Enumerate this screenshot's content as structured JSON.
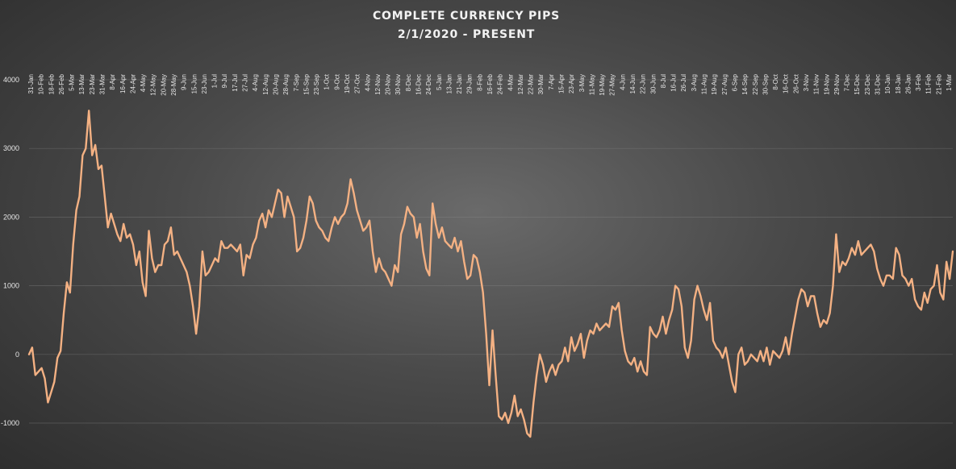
{
  "chart_data": {
    "type": "line",
    "title": "COMPLETE CURRENCY PIPS",
    "subtitle": "2/1/2020 - PRESENT",
    "xlabel": "",
    "ylabel": "",
    "ylim": [
      -1000,
      4000
    ],
    "yticks": [
      -1000,
      0,
      1000,
      2000,
      3000,
      4000
    ],
    "grid": true,
    "legend": "none",
    "line_color": "#f4b183",
    "xtick_labels": [
      "31-Jan",
      "10-Feb",
      "18-Feb",
      "26-Feb",
      "5-Mar",
      "13-Mar",
      "23-Mar",
      "31-Mar",
      "8-Apr",
      "16-Apr",
      "24-Apr",
      "4-May",
      "12-May",
      "20-May",
      "28-May",
      "9-Jun",
      "15-Jun",
      "23-Jun",
      "1-Jul",
      "9-Jul",
      "17-Jul",
      "27-Jul",
      "4-Aug",
      "12-Aug",
      "20-Aug",
      "28-Aug",
      "7-Sep",
      "15-Sep",
      "23-Sep",
      "1-Oct",
      "9-Oct",
      "19-Oct",
      "27-Oct",
      "4-Nov",
      "12-Nov",
      "20-Nov",
      "30-Nov",
      "8-Dec",
      "16-Dec",
      "24-Dec",
      "5-Jan",
      "13-Jan",
      "21-Jan",
      "29-Jan",
      "8-Feb",
      "16-Feb",
      "24-Feb",
      "4-Mar",
      "12-Mar",
      "22-Mar",
      "30-Mar",
      "7-Apr",
      "15-Apr",
      "23-Apr",
      "3-May",
      "11-May",
      "19-May",
      "27-May",
      "4-Jun",
      "14-Jun",
      "22-Jun",
      "30-Jun",
      "8-Jul",
      "16-Jul",
      "26-Jul",
      "3-Aug",
      "11-Aug",
      "19-Aug",
      "27-Aug",
      "6-Sep",
      "14-Sep",
      "22-Sep",
      "30-Sep",
      "8-Oct",
      "16-Oct",
      "26-Oct",
      "3-Nov",
      "11-Nov",
      "19-Nov",
      "29-Nov",
      "7-Dec",
      "15-Dec",
      "23-Dec",
      "31-Dec",
      "10-Jan",
      "18-Jan",
      "26-Jan",
      "3-Feb",
      "11-Feb",
      "21-Feb",
      "1-Mar"
    ],
    "series": [
      {
        "values": [
          [
            0,
            0
          ],
          [
            1,
            100
          ],
          [
            2,
            -300
          ],
          [
            3,
            -250
          ],
          [
            4,
            -200
          ],
          [
            5,
            -350
          ],
          [
            6,
            -700
          ],
          [
            7,
            -550
          ],
          [
            8,
            -400
          ],
          [
            9,
            -50
          ],
          [
            10,
            50
          ],
          [
            11,
            600
          ],
          [
            12,
            1050
          ],
          [
            13,
            900
          ],
          [
            14,
            1600
          ],
          [
            15,
            2100
          ],
          [
            16,
            2300
          ],
          [
            17,
            2900
          ],
          [
            18,
            3000
          ],
          [
            19,
            3550
          ],
          [
            20,
            2900
          ],
          [
            21,
            3050
          ],
          [
            22,
            2700
          ],
          [
            23,
            2750
          ],
          [
            24,
            2300
          ],
          [
            25,
            1850
          ],
          [
            26,
            2050
          ],
          [
            27,
            1900
          ],
          [
            28,
            1750
          ],
          [
            29,
            1650
          ],
          [
            30,
            1900
          ],
          [
            31,
            1700
          ],
          [
            32,
            1750
          ],
          [
            33,
            1600
          ],
          [
            34,
            1300
          ],
          [
            35,
            1500
          ],
          [
            36,
            1050
          ],
          [
            37,
            850
          ],
          [
            38,
            1800
          ],
          [
            39,
            1400
          ],
          [
            40,
            1200
          ],
          [
            41,
            1300
          ],
          [
            42,
            1300
          ],
          [
            43,
            1600
          ],
          [
            44,
            1650
          ],
          [
            45,
            1850
          ],
          [
            46,
            1450
          ],
          [
            47,
            1500
          ],
          [
            48,
            1400
          ],
          [
            49,
            1300
          ],
          [
            50,
            1200
          ],
          [
            51,
            1000
          ],
          [
            52,
            700
          ],
          [
            53,
            300
          ],
          [
            54,
            700
          ],
          [
            55,
            1500
          ],
          [
            56,
            1150
          ],
          [
            57,
            1200
          ],
          [
            58,
            1300
          ],
          [
            59,
            1400
          ],
          [
            60,
            1350
          ],
          [
            61,
            1650
          ],
          [
            62,
            1550
          ],
          [
            63,
            1550
          ],
          [
            64,
            1600
          ],
          [
            65,
            1550
          ],
          [
            66,
            1500
          ],
          [
            67,
            1600
          ],
          [
            68,
            1150
          ],
          [
            69,
            1450
          ],
          [
            70,
            1400
          ],
          [
            71,
            1600
          ],
          [
            72,
            1700
          ],
          [
            73,
            1950
          ],
          [
            74,
            2050
          ],
          [
            75,
            1850
          ],
          [
            76,
            2100
          ],
          [
            77,
            2000
          ],
          [
            78,
            2200
          ],
          [
            79,
            2400
          ],
          [
            80,
            2350
          ],
          [
            81,
            2000
          ],
          [
            82,
            2300
          ],
          [
            83,
            2150
          ],
          [
            84,
            2000
          ],
          [
            85,
            1500
          ],
          [
            86,
            1550
          ],
          [
            87,
            1700
          ],
          [
            88,
            1950
          ],
          [
            89,
            2300
          ],
          [
            90,
            2200
          ],
          [
            91,
            1950
          ],
          [
            92,
            1850
          ],
          [
            93,
            1800
          ],
          [
            94,
            1700
          ],
          [
            95,
            1650
          ],
          [
            96,
            1850
          ],
          [
            97,
            2000
          ],
          [
            98,
            1900
          ],
          [
            99,
            2000
          ],
          [
            100,
            2050
          ],
          [
            101,
            2200
          ],
          [
            102,
            2550
          ],
          [
            103,
            2350
          ],
          [
            104,
            2100
          ],
          [
            105,
            1950
          ],
          [
            106,
            1800
          ],
          [
            107,
            1850
          ],
          [
            108,
            1950
          ],
          [
            109,
            1500
          ],
          [
            110,
            1200
          ],
          [
            111,
            1400
          ],
          [
            112,
            1250
          ],
          [
            113,
            1200
          ],
          [
            114,
            1100
          ],
          [
            115,
            1000
          ],
          [
            116,
            1300
          ],
          [
            117,
            1200
          ],
          [
            118,
            1750
          ],
          [
            119,
            1900
          ],
          [
            120,
            2150
          ],
          [
            121,
            2050
          ],
          [
            122,
            2000
          ],
          [
            123,
            1700
          ],
          [
            124,
            1900
          ],
          [
            125,
            1500
          ],
          [
            126,
            1250
          ],
          [
            127,
            1150
          ],
          [
            128,
            2200
          ],
          [
            129,
            1900
          ],
          [
            130,
            1700
          ],
          [
            131,
            1850
          ],
          [
            132,
            1650
          ],
          [
            133,
            1600
          ],
          [
            134,
            1550
          ],
          [
            135,
            1700
          ],
          [
            136,
            1500
          ],
          [
            137,
            1650
          ],
          [
            138,
            1350
          ],
          [
            139,
            1100
          ],
          [
            140,
            1150
          ],
          [
            141,
            1450
          ],
          [
            142,
            1400
          ],
          [
            143,
            1200
          ],
          [
            144,
            900
          ],
          [
            145,
            300
          ],
          [
            146,
            -450
          ],
          [
            147,
            350
          ],
          [
            148,
            -300
          ],
          [
            149,
            -900
          ],
          [
            150,
            -950
          ],
          [
            151,
            -850
          ],
          [
            152,
            -1000
          ],
          [
            153,
            -850
          ],
          [
            154,
            -600
          ],
          [
            155,
            -900
          ],
          [
            156,
            -800
          ],
          [
            157,
            -950
          ],
          [
            158,
            -1150
          ],
          [
            159,
            -1200
          ],
          [
            160,
            -700
          ],
          [
            161,
            -300
          ],
          [
            162,
            0
          ],
          [
            163,
            -150
          ],
          [
            164,
            -400
          ],
          [
            165,
            -250
          ],
          [
            166,
            -150
          ],
          [
            167,
            -300
          ],
          [
            168,
            -150
          ],
          [
            169,
            -100
          ],
          [
            170,
            100
          ],
          [
            171,
            -100
          ],
          [
            172,
            250
          ],
          [
            173,
            50
          ],
          [
            174,
            150
          ],
          [
            175,
            300
          ],
          [
            176,
            -50
          ],
          [
            177,
            200
          ],
          [
            178,
            350
          ],
          [
            179,
            300
          ],
          [
            180,
            450
          ],
          [
            181,
            350
          ],
          [
            182,
            400
          ],
          [
            183,
            450
          ],
          [
            184,
            400
          ],
          [
            185,
            700
          ],
          [
            186,
            650
          ],
          [
            187,
            750
          ],
          [
            188,
            350
          ],
          [
            189,
            50
          ],
          [
            190,
            -100
          ],
          [
            191,
            -150
          ],
          [
            192,
            -50
          ],
          [
            193,
            -250
          ],
          [
            194,
            -100
          ],
          [
            195,
            -250
          ],
          [
            196,
            -300
          ],
          [
            197,
            400
          ],
          [
            198,
            300
          ],
          [
            199,
            250
          ],
          [
            200,
            350
          ],
          [
            201,
            550
          ],
          [
            202,
            300
          ],
          [
            203,
            500
          ],
          [
            204,
            650
          ],
          [
            205,
            1000
          ],
          [
            206,
            950
          ],
          [
            207,
            700
          ],
          [
            208,
            100
          ],
          [
            209,
            -50
          ],
          [
            210,
            200
          ],
          [
            211,
            800
          ],
          [
            212,
            1000
          ],
          [
            213,
            850
          ],
          [
            214,
            650
          ],
          [
            215,
            500
          ],
          [
            216,
            750
          ],
          [
            217,
            200
          ],
          [
            218,
            100
          ],
          [
            219,
            50
          ],
          [
            220,
            -50
          ],
          [
            221,
            100
          ],
          [
            222,
            -150
          ],
          [
            223,
            -400
          ],
          [
            224,
            -550
          ],
          [
            225,
            0
          ],
          [
            226,
            100
          ],
          [
            227,
            -150
          ],
          [
            228,
            -100
          ],
          [
            229,
            0
          ],
          [
            230,
            -50
          ],
          [
            231,
            -100
          ],
          [
            232,
            50
          ],
          [
            233,
            -100
          ],
          [
            234,
            100
          ],
          [
            235,
            -150
          ],
          [
            236,
            50
          ],
          [
            237,
            0
          ],
          [
            238,
            -50
          ],
          [
            239,
            50
          ],
          [
            240,
            250
          ],
          [
            241,
            0
          ],
          [
            242,
            300
          ],
          [
            243,
            550
          ],
          [
            244,
            800
          ],
          [
            245,
            950
          ],
          [
            246,
            900
          ],
          [
            247,
            700
          ],
          [
            248,
            850
          ],
          [
            249,
            850
          ],
          [
            250,
            600
          ],
          [
            251,
            400
          ],
          [
            252,
            500
          ],
          [
            253,
            450
          ],
          [
            254,
            600
          ],
          [
            255,
            1000
          ],
          [
            256,
            1750
          ],
          [
            257,
            1200
          ],
          [
            258,
            1350
          ],
          [
            259,
            1300
          ],
          [
            260,
            1400
          ],
          [
            261,
            1550
          ],
          [
            262,
            1450
          ],
          [
            263,
            1650
          ],
          [
            264,
            1450
          ],
          [
            265,
            1500
          ],
          [
            266,
            1550
          ],
          [
            267,
            1600
          ],
          [
            268,
            1500
          ],
          [
            269,
            1250
          ],
          [
            270,
            1100
          ],
          [
            271,
            1000
          ],
          [
            272,
            1150
          ],
          [
            273,
            1150
          ],
          [
            274,
            1100
          ],
          [
            275,
            1550
          ],
          [
            276,
            1450
          ],
          [
            277,
            1150
          ],
          [
            278,
            1100
          ],
          [
            279,
            1000
          ],
          [
            280,
            1100
          ],
          [
            281,
            800
          ],
          [
            282,
            700
          ],
          [
            283,
            650
          ],
          [
            284,
            900
          ],
          [
            285,
            750
          ],
          [
            286,
            950
          ],
          [
            287,
            1000
          ],
          [
            288,
            1300
          ],
          [
            289,
            900
          ],
          [
            290,
            800
          ],
          [
            291,
            1350
          ],
          [
            292,
            1100
          ],
          [
            293,
            1500
          ]
        ]
      }
    ]
  }
}
